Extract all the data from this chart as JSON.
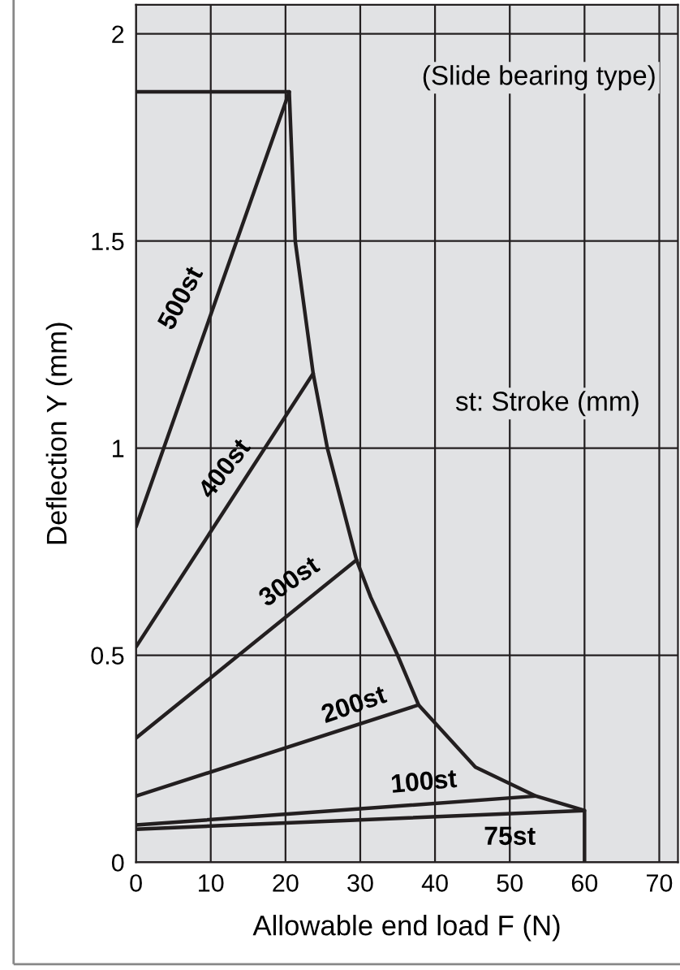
{
  "chart_data": {
    "type": "line",
    "xlabel": "Allowable end load F (N)",
    "ylabel": "Deflection Y (mm)",
    "xlim": [
      0,
      72.5
    ],
    "ylim": [
      0,
      2.07
    ],
    "xticks": [
      0,
      10,
      20,
      30,
      40,
      50,
      60,
      70
    ],
    "yticks": [
      0,
      0.5,
      1,
      1.5,
      2
    ],
    "grid": true,
    "series": [
      {
        "color": "#231f20",
        "x": [
          0,
          20.5
        ],
        "values": [
          0.81,
          1.86
        ]
      },
      {
        "color": "#231f20",
        "x": [
          0,
          23.7
        ],
        "values": [
          0.52,
          1.18
        ]
      },
      {
        "color": "#231f20",
        "x": [
          0,
          29.5
        ],
        "values": [
          0.3,
          0.73
        ]
      },
      {
        "color": "#231f20",
        "x": [
          0,
          37.8
        ],
        "values": [
          0.16,
          0.38
        ]
      },
      {
        "color": "#231f20",
        "x": [
          0,
          53.5
        ],
        "values": [
          0.09,
          0.16
        ]
      },
      {
        "color": "#231f20",
        "x": [
          0,
          60
        ],
        "values": [
          0.08,
          0.125
        ]
      },
      {
        "color": "#231f20",
        "x": [
          0,
          20.5,
          21.3,
          23.7,
          25.6,
          29.5,
          31.4,
          35,
          37.8,
          45.4,
          53.5,
          60,
          60
        ],
        "values": [
          1.86,
          1.86,
          1.5,
          1.18,
          1.0,
          0.73,
          0.64,
          0.5,
          0.38,
          0.23,
          0.16,
          0.125,
          0
        ]
      }
    ],
    "annotations": [
      {
        "text": "500st",
        "x": 10.7,
        "y": 1.36
      },
      {
        "text": "400st",
        "x": 12,
        "y": 0.854
      },
      {
        "text": "300st",
        "x": 20.6,
        "y": 0.6
      },
      {
        "text": "200st",
        "x": 29.2,
        "y": 0.33
      },
      {
        "text": "100st",
        "x": 38.5,
        "y": 0.14
      },
      {
        "text": "75st",
        "x": 50,
        "y": 0.1175
      },
      "(Slide bearing type)",
      "st: Stroke (mm)"
    ]
  }
}
